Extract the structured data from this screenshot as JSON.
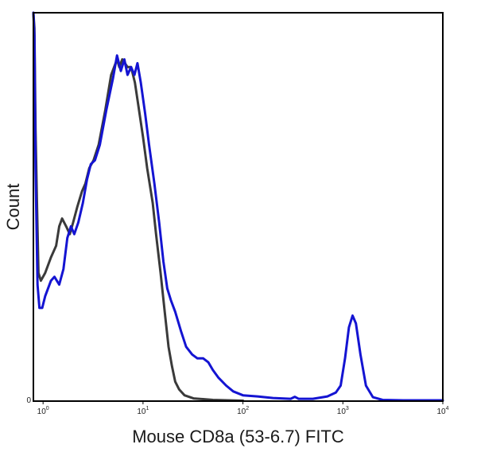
{
  "chart_data": {
    "type": "line",
    "title": "",
    "xlabel": "Mouse CD8a (53-6.7) FITC",
    "ylabel": "Count",
    "x_scale": "log",
    "xlim": [
      0.8,
      10000
    ],
    "ylim": [
      0,
      100
    ],
    "grid": false,
    "x_ticks": [
      {
        "value": 1,
        "base": "10",
        "exp": "0"
      },
      {
        "value": 10,
        "base": "10",
        "exp": "1"
      },
      {
        "value": 100,
        "base": "10",
        "exp": "2"
      },
      {
        "value": 1000,
        "base": "10",
        "exp": "3"
      },
      {
        "value": 10000,
        "base": "10",
        "exp": "4"
      }
    ],
    "y_ticks": [
      {
        "value": 0,
        "label": "0"
      }
    ],
    "series": [
      {
        "color": "#3a3a3a",
        "points": [
          [
            0.8,
            100
          ],
          [
            0.82,
            96
          ],
          [
            0.84,
            70
          ],
          [
            0.87,
            50
          ],
          [
            0.9,
            33
          ],
          [
            0.95,
            31
          ],
          [
            1.05,
            33
          ],
          [
            1.2,
            37
          ],
          [
            1.35,
            40
          ],
          [
            1.45,
            45
          ],
          [
            1.55,
            47
          ],
          [
            1.7,
            45
          ],
          [
            1.85,
            43
          ],
          [
            2.0,
            46
          ],
          [
            2.2,
            50
          ],
          [
            2.45,
            54
          ],
          [
            2.65,
            56
          ],
          [
            2.9,
            60
          ],
          [
            3.2,
            62
          ],
          [
            3.6,
            66
          ],
          [
            4.2,
            75
          ],
          [
            4.8,
            84
          ],
          [
            5.5,
            88
          ],
          [
            5.8,
            86
          ],
          [
            6.2,
            88
          ],
          [
            6.6,
            87
          ],
          [
            7.0,
            86
          ],
          [
            7.6,
            86
          ],
          [
            8.3,
            82
          ],
          [
            9.0,
            76
          ],
          [
            10.0,
            68
          ],
          [
            11.0,
            60
          ],
          [
            12.5,
            51
          ],
          [
            13.5,
            43
          ],
          [
            15.0,
            33
          ],
          [
            16.5,
            23
          ],
          [
            18.0,
            14
          ],
          [
            19.5,
            9
          ],
          [
            21.0,
            5
          ],
          [
            23.0,
            3
          ],
          [
            26.0,
            1.5
          ],
          [
            32.0,
            0.7
          ],
          [
            50.0,
            0.3
          ],
          [
            100.0,
            0.1
          ]
        ]
      },
      {
        "color": "#1414d2",
        "points": [
          [
            0.8,
            100
          ],
          [
            0.82,
            94
          ],
          [
            0.84,
            60
          ],
          [
            0.88,
            30
          ],
          [
            0.92,
            24
          ],
          [
            0.98,
            24
          ],
          [
            1.05,
            27
          ],
          [
            1.2,
            31
          ],
          [
            1.3,
            32
          ],
          [
            1.45,
            30
          ],
          [
            1.6,
            34
          ],
          [
            1.75,
            42
          ],
          [
            1.9,
            45
          ],
          [
            2.05,
            43
          ],
          [
            2.25,
            46
          ],
          [
            2.5,
            51
          ],
          [
            2.75,
            57
          ],
          [
            3.0,
            61
          ],
          [
            3.3,
            62
          ],
          [
            3.7,
            66
          ],
          [
            4.3,
            75
          ],
          [
            5.0,
            83
          ],
          [
            5.5,
            89
          ],
          [
            6.0,
            85
          ],
          [
            6.5,
            88
          ],
          [
            7.0,
            84
          ],
          [
            7.6,
            86
          ],
          [
            8.2,
            84
          ],
          [
            8.8,
            87
          ],
          [
            9.5,
            82
          ],
          [
            10.5,
            74
          ],
          [
            11.5,
            66
          ],
          [
            13.0,
            56
          ],
          [
            14.5,
            46
          ],
          [
            16.0,
            36
          ],
          [
            17.5,
            29
          ],
          [
            19.0,
            26
          ],
          [
            21.0,
            23
          ],
          [
            24.0,
            18
          ],
          [
            27.0,
            14
          ],
          [
            31.0,
            12
          ],
          [
            35.0,
            11
          ],
          [
            40.0,
            11
          ],
          [
            45.0,
            10
          ],
          [
            50.0,
            8
          ],
          [
            57.0,
            6
          ],
          [
            68.0,
            4
          ],
          [
            80.0,
            2.5
          ],
          [
            100.0,
            1.5
          ],
          [
            140.0,
            1.2
          ],
          [
            200.0,
            0.8
          ],
          [
            300.0,
            0.6
          ],
          [
            330.0,
            1.1
          ],
          [
            360.0,
            0.6
          ],
          [
            500.0,
            0.6
          ],
          [
            700.0,
            1.2
          ],
          [
            850.0,
            2.2
          ],
          [
            950.0,
            4
          ],
          [
            1050.0,
            11
          ],
          [
            1150.0,
            19
          ],
          [
            1250.0,
            22
          ],
          [
            1350.0,
            20
          ],
          [
            1500.0,
            12
          ],
          [
            1700.0,
            4
          ],
          [
            2000.0,
            1
          ],
          [
            2500.0,
            0.3
          ],
          [
            4000.0,
            0.2
          ],
          [
            10000.0,
            0.2
          ]
        ]
      }
    ]
  }
}
